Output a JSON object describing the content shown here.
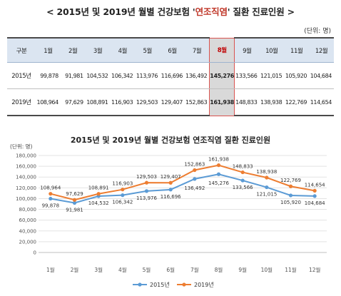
{
  "header": {
    "title_prefix": "< 2015년 및 2019년 월별 건강보험 '",
    "title_highlight": "연조직염",
    "title_suffix": "' 질환 진료인원 >",
    "unit": "(단위: 명)"
  },
  "table": {
    "corner": "구분",
    "months": [
      "1월",
      "2월",
      "3월",
      "4월",
      "5월",
      "6월",
      "7월",
      "8월",
      "9월",
      "10월",
      "11월",
      "12월"
    ],
    "rows": [
      {
        "label": "2015년",
        "values": [
          "99,878",
          "91,981",
          "104,532",
          "106,342",
          "113,976",
          "116,696",
          "136,492",
          "145,276",
          "133,566",
          "121,015",
          "105,920",
          "104,684"
        ]
      },
      {
        "label": "2019년",
        "values": [
          "108,964",
          "97,629",
          "108,891",
          "116,903",
          "129,503",
          "129,407",
          "152,863",
          "161,938",
          "148,833",
          "138,938",
          "122,769",
          "114,654"
        ]
      }
    ]
  },
  "chart_data": {
    "type": "line",
    "title": "2015년 및 2019년 월별 건강보험 연조직염 질환 진료인원",
    "ylabel": "(단위: 명)",
    "categories": [
      "1월",
      "2월",
      "3월",
      "4월",
      "5월",
      "6월",
      "7월",
      "8월",
      "9월",
      "10월",
      "11월",
      "12월"
    ],
    "ylim": [
      0,
      180000
    ],
    "yticks": [
      0,
      20000,
      40000,
      60000,
      80000,
      100000,
      120000,
      140000,
      160000,
      180000
    ],
    "ytick_labels": [
      "0",
      "20,000",
      "40,000",
      "60,000",
      "80,000",
      "100,000",
      "120,000",
      "140,000",
      "160,000",
      "180,000"
    ],
    "grid": true,
    "legend": "bottom",
    "series": [
      {
        "name": "2015년",
        "color": "#5b9bd5",
        "values": [
          99878,
          91981,
          104532,
          106342,
          113976,
          116696,
          136492,
          145276,
          133566,
          121015,
          105920,
          104684
        ],
        "labels": [
          "99,878",
          "91,981",
          "104,532",
          "106,342",
          "113,976",
          "116,696",
          "136,492",
          "145,276",
          "133,566",
          "121,015",
          "105,920",
          "104,684"
        ]
      },
      {
        "name": "2019년",
        "color": "#ed7d31",
        "values": [
          108964,
          97629,
          108891,
          116903,
          129503,
          129407,
          152863,
          161938,
          148833,
          138938,
          122769,
          114654
        ],
        "labels": [
          "108,964",
          "97,629",
          "108,891",
          "116,903",
          "129,503",
          "129,407",
          "152,863",
          "161,938",
          "148,833",
          "138,938",
          "122,769",
          "114,654"
        ]
      }
    ]
  }
}
